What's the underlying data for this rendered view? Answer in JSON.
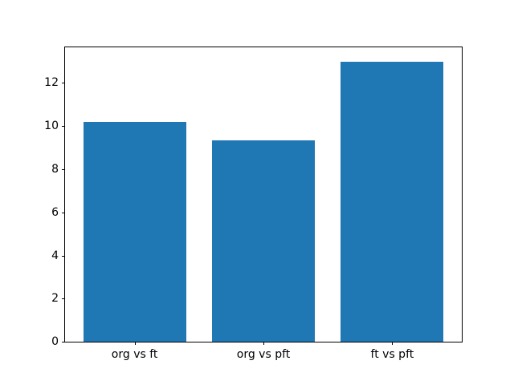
{
  "chart_data": {
    "type": "bar",
    "categories": [
      "org vs ft",
      "org vs pft",
      "ft vs pft"
    ],
    "values": [
      10.2,
      9.35,
      13.0
    ],
    "title": "",
    "xlabel": "",
    "ylabel": "",
    "ylim": [
      0,
      13.65
    ],
    "yticks": [
      0,
      2,
      4,
      6,
      8,
      10,
      12
    ],
    "bar_color": "#1f77b4",
    "bar_width": 0.8,
    "grid": false,
    "legend": null,
    "axes_background": "#ffffff",
    "spine_color": "#000000",
    "tick_label_color": "#000000"
  }
}
